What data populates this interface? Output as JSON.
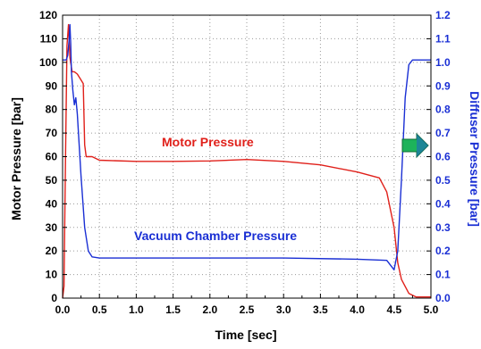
{
  "chart_data": {
    "type": "line",
    "title": "",
    "xlabel": "Time [sec]",
    "ylabel_left": "Motor Pressure [bar]",
    "ylabel_right": "Diffuser Pressure [bar]",
    "xlim": [
      0.0,
      5.0
    ],
    "ylim_left": [
      0,
      120
    ],
    "ylim_right": [
      0.0,
      1.2
    ],
    "x_ticks": [
      "0.0",
      "0.5",
      "1.0",
      "1.5",
      "2.0",
      "2.5",
      "3.0",
      "3.5",
      "4.0",
      "4.5",
      "5.0"
    ],
    "y_left_ticks": [
      "0",
      "10",
      "20",
      "30",
      "40",
      "50",
      "60",
      "70",
      "80",
      "90",
      "100",
      "110",
      "120"
    ],
    "y_right_ticks": [
      "0.0",
      "0.1",
      "0.2",
      "0.3",
      "0.4",
      "0.5",
      "0.6",
      "0.7",
      "0.8",
      "0.9",
      "1.0",
      "1.1",
      "1.2"
    ],
    "grid": "dotted",
    "colors": {
      "motor": "#e0201a",
      "vacuum": "#1a2fd4",
      "right_axis": "#1a2fd4",
      "arrow": "#1db35a"
    },
    "annotations": [
      {
        "text": "Motor Pressure",
        "color": "#e0201a"
      },
      {
        "text": "Vacuum Chamber Pressure",
        "color": "#1a2fd4"
      }
    ],
    "arrow_icon": "right-arrow-icon",
    "series": [
      {
        "name": "Motor Pressure",
        "axis": "left",
        "color": "#e0201a",
        "points": [
          [
            0.0,
            0
          ],
          [
            0.02,
            5
          ],
          [
            0.04,
            60
          ],
          [
            0.06,
            107
          ],
          [
            0.08,
            116
          ],
          [
            0.1,
            102
          ],
          [
            0.13,
            96
          ],
          [
            0.16,
            96
          ],
          [
            0.2,
            95
          ],
          [
            0.24,
            93
          ],
          [
            0.28,
            91
          ],
          [
            0.3,
            65
          ],
          [
            0.32,
            60
          ],
          [
            0.4,
            60
          ],
          [
            0.5,
            58.5
          ],
          [
            1.0,
            58
          ],
          [
            1.5,
            58
          ],
          [
            2.0,
            58.2
          ],
          [
            2.5,
            58.8
          ],
          [
            3.0,
            58
          ],
          [
            3.5,
            56.5
          ],
          [
            4.0,
            53.5
          ],
          [
            4.3,
            51
          ],
          [
            4.4,
            45
          ],
          [
            4.5,
            30
          ],
          [
            4.55,
            15
          ],
          [
            4.6,
            8
          ],
          [
            4.7,
            2
          ],
          [
            4.8,
            0.5
          ],
          [
            5.0,
            0.5
          ]
        ]
      },
      {
        "name": "Vacuum Chamber Pressure",
        "axis": "right",
        "color": "#1a2fd4",
        "points": [
          [
            0.0,
            1.01
          ],
          [
            0.05,
            1.01
          ],
          [
            0.07,
            1.03
          ],
          [
            0.09,
            1.1
          ],
          [
            0.1,
            1.16
          ],
          [
            0.11,
            1.08
          ],
          [
            0.12,
            0.96
          ],
          [
            0.14,
            0.88
          ],
          [
            0.16,
            0.82
          ],
          [
            0.18,
            0.85
          ],
          [
            0.2,
            0.78
          ],
          [
            0.25,
            0.52
          ],
          [
            0.3,
            0.3
          ],
          [
            0.35,
            0.2
          ],
          [
            0.4,
            0.175
          ],
          [
            0.5,
            0.17
          ],
          [
            1.0,
            0.17
          ],
          [
            2.0,
            0.17
          ],
          [
            3.0,
            0.17
          ],
          [
            4.0,
            0.165
          ],
          [
            4.4,
            0.16
          ],
          [
            4.5,
            0.12
          ],
          [
            4.55,
            0.2
          ],
          [
            4.6,
            0.5
          ],
          [
            4.65,
            0.85
          ],
          [
            4.7,
            0.99
          ],
          [
            4.75,
            1.01
          ],
          [
            5.0,
            1.01
          ]
        ]
      }
    ]
  }
}
